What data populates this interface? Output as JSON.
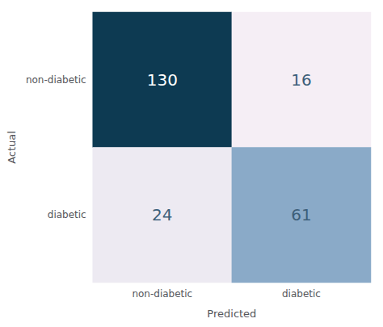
{
  "chart_data": {
    "type": "heatmap",
    "xlabel": "Predicted",
    "ylabel": "Actual",
    "categories": [
      "non-diabetic",
      "diabetic"
    ],
    "y_categories": [
      "non-diabetic",
      "diabetic"
    ],
    "matrix": [
      [
        130,
        16
      ],
      [
        24,
        61
      ]
    ],
    "colors": [
      [
        "#0d3a52",
        "#f5eef5"
      ],
      [
        "#edeaf2",
        "#8aaac8"
      ]
    ],
    "data_labels": true
  }
}
